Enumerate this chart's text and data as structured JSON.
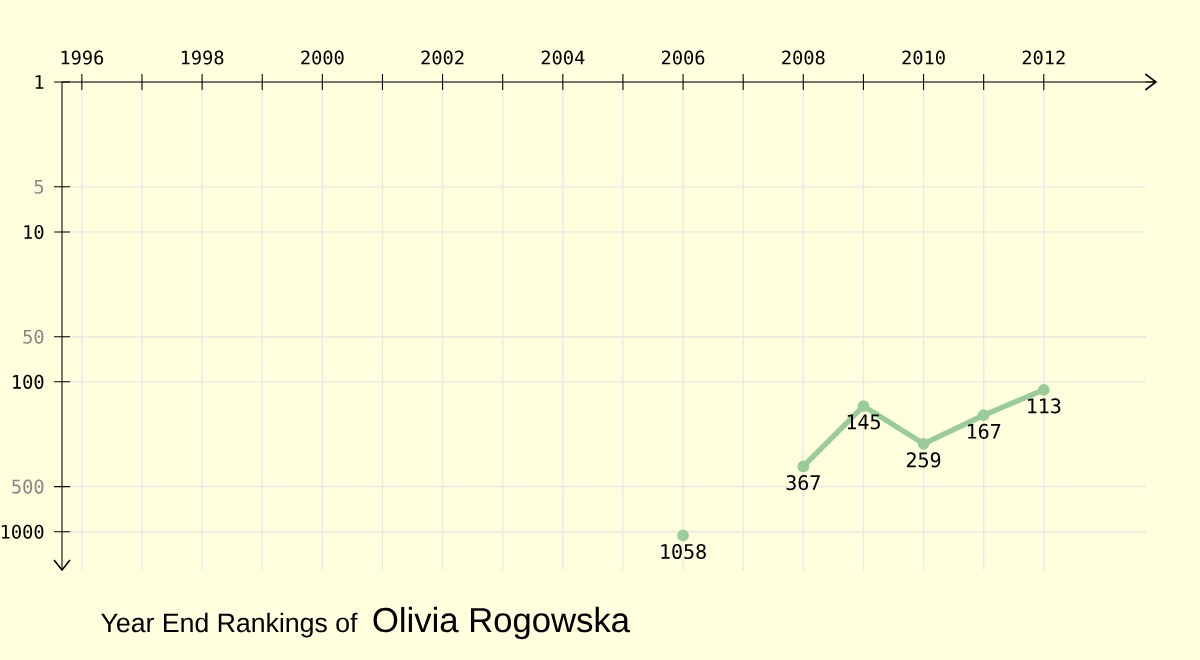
{
  "chart_data": {
    "type": "line",
    "title": "Year End Rankings of",
    "subtitle": "Olivia Rogowska",
    "x": [
      2006,
      2007,
      2008,
      2009,
      2010,
      2011,
      2012
    ],
    "series": [
      {
        "color": "#99cc99",
        "values": [
          1058,
          null,
          367,
          145,
          259,
          167,
          113
        ]
      }
    ],
    "xlim": [
      1995.67,
      2013.7
    ],
    "xticks": [
      1996,
      {
        "value": 1997,
        "label": null
      },
      1998,
      {
        "value": 1999,
        "label": null
      },
      2000,
      {
        "value": 2001,
        "label": null
      },
      2002,
      {
        "value": 2003,
        "label": null
      },
      2004,
      {
        "value": 2005,
        "label": null
      },
      2006,
      {
        "value": 2007,
        "label": null
      },
      2008,
      {
        "value": 2009,
        "label": null
      },
      2010,
      {
        "value": 2011,
        "label": null
      },
      2012
    ],
    "ylim": [
      1800,
      1
    ],
    "yticks": [
      1,
      5,
      10,
      50,
      100,
      500,
      1000
    ],
    "log": "y",
    "grid": true,
    "marker": "circle",
    "line_style": "solid",
    "data_labels": true
  }
}
